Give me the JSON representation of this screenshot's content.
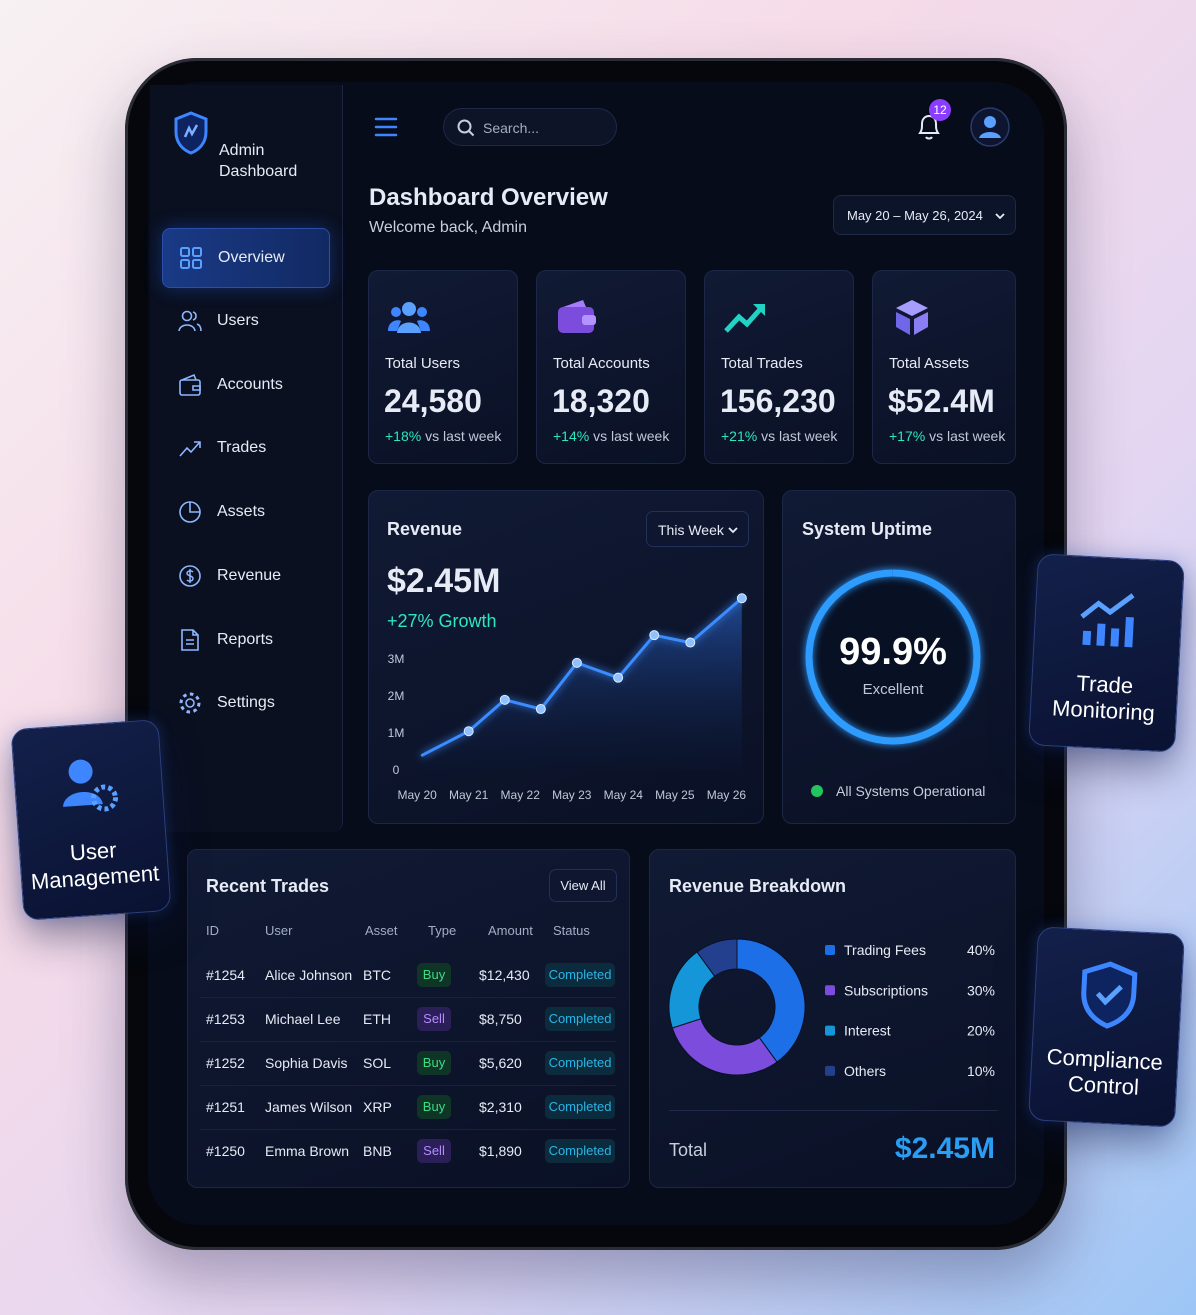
{
  "sidebar": {
    "brand": [
      "Admin",
      "Dashboard"
    ],
    "nav": [
      "Overview",
      "Users",
      "Accounts",
      "Trades",
      "Assets",
      "Revenue",
      "Reports",
      "Settings"
    ]
  },
  "topbar": {
    "search_placeholder": "Search...",
    "notification_count": 12
  },
  "header": {
    "title": "Dashboard Overview",
    "subtitle": "Welcome back, Admin",
    "date_range": "May 20 – May 26, 2024"
  },
  "stats": [
    {
      "label": "Total Users",
      "value": "24,580",
      "change": "+18%",
      "change_note": "vs last week"
    },
    {
      "label": "Total Accounts",
      "value": "18,320",
      "change": "+14%",
      "change_note": "vs last week"
    },
    {
      "label": "Total Trades",
      "value": "156,230",
      "change": "+21%",
      "change_note": "vs last week"
    },
    {
      "label": "Total Assets",
      "value": "$52.4M",
      "change": "+17%",
      "change_note": "vs last week"
    }
  ],
  "revenue": {
    "title": "Revenue",
    "period": "This Week",
    "total": "$2.45M",
    "growth": "+27% Growth",
    "chart": {
      "type": "line",
      "x": [
        0.1,
        1.0,
        1.7,
        2.4,
        3.1,
        3.9,
        4.6,
        5.3,
        6.3
      ],
      "values": [
        0.4,
        1.05,
        1.9,
        1.65,
        2.9,
        2.5,
        3.65,
        3.45,
        4.65
      ],
      "color": "#3b8cff",
      "xlim": [
        -0.1,
        6.4
      ],
      "xticks": [
        {
          "value": 0,
          "label": "May 20"
        },
        {
          "value": 1,
          "label": "May 21"
        },
        {
          "value": 2,
          "label": "May 22"
        },
        {
          "value": 3,
          "label": "May 23"
        },
        {
          "value": 4,
          "label": "May 24"
        },
        {
          "value": 5,
          "label": "May 25"
        },
        {
          "value": 6,
          "label": "May 26"
        }
      ],
      "ylim": [
        0,
        4.9
      ],
      "yticks": [
        0,
        {
          "value": 1,
          "label": "1M"
        },
        {
          "value": 2,
          "label": "2M"
        },
        {
          "value": 3,
          "label": "3M"
        }
      ],
      "grid": false
    }
  },
  "uptime": {
    "title": "System Uptime",
    "value": 99.9,
    "value_label": "99.9%",
    "rating": "Excellent",
    "status": "All Systems Operational"
  },
  "trades": {
    "title": "Recent Trades",
    "action": "View All",
    "columns": [
      "ID",
      "User",
      "Asset",
      "Type",
      "Amount",
      "Status"
    ],
    "rows": [
      [
        "#1254",
        "Alice Johnson",
        "BTC",
        "Buy",
        "$12,430",
        "Completed"
      ],
      [
        "#1253",
        "Michael Lee",
        "ETH",
        "Sell",
        "$8,750",
        "Completed"
      ],
      [
        "#1252",
        "Sophia Davis",
        "SOL",
        "Buy",
        "$5,620",
        "Completed"
      ],
      [
        "#1251",
        "James Wilson",
        "XRP",
        "Buy",
        "$2,310",
        "Completed"
      ],
      [
        "#1250",
        "Emma Brown",
        "BNB",
        "Sell",
        "$1,890",
        "Completed"
      ]
    ]
  },
  "breakdown": {
    "title": "Revenue Breakdown",
    "chart": {
      "type": "pie",
      "categories": [
        "Trading Fees",
        "Subscriptions",
        "Interest",
        "Others"
      ],
      "values": [
        40,
        30,
        20,
        10
      ],
      "value_labels": [
        "40%",
        "30%",
        "20%",
        "10%"
      ],
      "colors": [
        "#1d6fe8",
        "#7c4ddc",
        "#1596d8",
        "#23408f"
      ]
    },
    "total_label": "Total",
    "total": "$2.45M"
  },
  "floating": [
    "User Management",
    "Trade Monitoring",
    "Compliance Control"
  ]
}
